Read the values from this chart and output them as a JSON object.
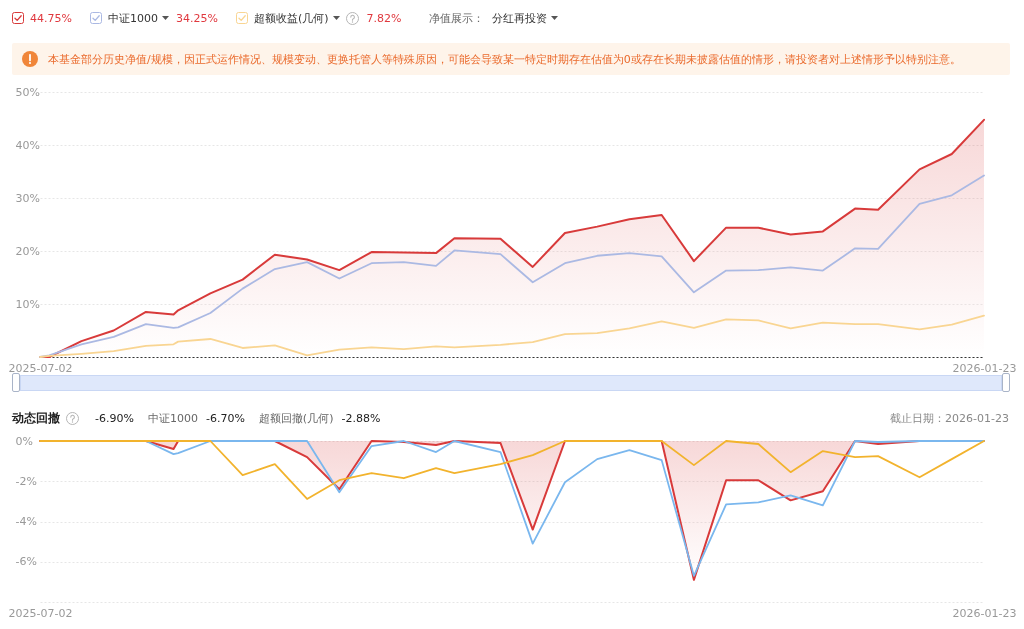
{
  "chart_data": [
    {
      "type": "line",
      "x": [
        "2025-07-02",
        "2025-07-04",
        "2025-07-11",
        "2025-07-18",
        "2025-07-25",
        "2025-07-31",
        "2025-08-01",
        "2025-08-08",
        "2025-08-15",
        "2025-08-22",
        "2025-08-29",
        "2025-09-05",
        "2025-09-12",
        "2025-09-19",
        "2025-09-26",
        "2025-09-30",
        "2025-10-10",
        "2025-10-17",
        "2025-10-24",
        "2025-10-31",
        "2025-11-07",
        "2025-11-14",
        "2025-11-21",
        "2025-11-28",
        "2025-12-05",
        "2025-12-12",
        "2025-12-19",
        "2025-12-26",
        "2025-12-31",
        "2026-01-09",
        "2026-01-16",
        "2026-01-23"
      ],
      "xlim": [
        "2025-07-02",
        "2026-01-23"
      ],
      "xticks": [
        "2025-07-02",
        "2026-01-23"
      ],
      "ylim": [
        0,
        50
      ],
      "yticks": [
        {
          "value": 0,
          "label": null
        },
        {
          "value": 10,
          "label": "10%"
        },
        {
          "value": 20,
          "label": "20%"
        },
        {
          "value": 30,
          "label": "30%"
        },
        {
          "value": 40,
          "label": "40%"
        },
        {
          "value": 50,
          "label": "50%"
        }
      ],
      "grid": "y",
      "legend": "top left",
      "series": [
        {
          "type": "area",
          "color": "#d83a3a",
          "values": [
            0,
            0,
            3.0,
            5.0,
            8.5,
            8.0,
            8.8,
            12.0,
            14.6,
            19.3,
            18.4,
            16.4,
            19.8,
            19.7,
            19.6,
            22.4,
            22.3,
            17.0,
            23.4,
            24.6,
            26.0,
            26.8,
            18.1,
            24.4,
            24.4,
            23.1,
            23.7,
            28.0,
            27.8,
            35.4,
            38.3,
            44.75
          ]
        },
        {
          "name": "中证1000",
          "color": "#abb9e3",
          "values": [
            0,
            0.3,
            2.4,
            3.8,
            6.2,
            5.5,
            5.6,
            8.3,
            12.9,
            16.6,
            17.9,
            14.8,
            17.7,
            17.9,
            17.2,
            20.1,
            19.4,
            14.1,
            17.7,
            19.1,
            19.6,
            19.0,
            12.2,
            16.3,
            16.4,
            16.9,
            16.3,
            20.5,
            20.4,
            28.9,
            30.5,
            34.25
          ]
        },
        {
          "name": "超额收益(几何)",
          "color": "#f9d592",
          "values": [
            0,
            0.2,
            0.6,
            1.1,
            2.1,
            2.4,
            2.9,
            3.4,
            1.7,
            2.2,
            0.3,
            1.4,
            1.8,
            1.5,
            2.0,
            1.8,
            2.3,
            2.8,
            4.3,
            4.5,
            5.4,
            6.7,
            5.5,
            7.1,
            6.9,
            5.4,
            6.5,
            6.2,
            6.2,
            5.2,
            6.1,
            7.82
          ]
        }
      ],
      "annotations": [
        "44.75%",
        "34.25%",
        "7.82%",
        "净值展示：",
        "分红再投资",
        "本基金部分历史净值/规模，因正式运作情况、规模变动、更换托管人等特殊原因，可能会导致某一特定时期存在估值为0或存在长期未披露估值的情形，请投资者对上述情形予以特别注意。"
      ]
    },
    {
      "type": "line",
      "title": "动态回撤",
      "x": [
        "2025-07-02",
        "2025-07-04",
        "2025-07-11",
        "2025-07-18",
        "2025-07-25",
        "2025-07-31",
        "2025-08-01",
        "2025-08-08",
        "2025-08-15",
        "2025-08-22",
        "2025-08-29",
        "2025-09-05",
        "2025-09-12",
        "2025-09-19",
        "2025-09-26",
        "2025-09-30",
        "2025-10-10",
        "2025-10-17",
        "2025-10-24",
        "2025-10-31",
        "2025-11-07",
        "2025-11-14",
        "2025-11-21",
        "2025-11-28",
        "2025-12-05",
        "2025-12-12",
        "2025-12-19",
        "2025-12-26",
        "2025-12-31",
        "2026-01-09",
        "2026-01-16",
        "2026-01-23"
      ],
      "xlim": [
        "2025-07-02",
        "2026-01-23"
      ],
      "xticks": [
        "2025-07-02",
        "2026-01-23"
      ],
      "ylim": [
        -8,
        0
      ],
      "yticks": [
        {
          "value": 0,
          "label": "0%"
        },
        {
          "value": -2,
          "label": "-2%"
        },
        {
          "value": -4,
          "label": "-4%"
        },
        {
          "value": -6,
          "label": "-6%"
        },
        {
          "value": -8,
          "label": null
        }
      ],
      "grid": "y",
      "series": [
        {
          "type": "area",
          "color": "#d83a3a",
          "values": [
            0,
            0,
            0,
            0,
            0,
            -0.4,
            0,
            0,
            0,
            0,
            -0.8,
            -2.4,
            0,
            -0.05,
            -0.2,
            0,
            -0.1,
            -4.4,
            0,
            0,
            0,
            0,
            -6.9,
            -1.95,
            -1.95,
            -2.95,
            -2.5,
            0,
            -0.15,
            0,
            0,
            0
          ]
        },
        {
          "color": "#7ab7ee",
          "values": [
            null,
            null,
            null,
            0,
            0,
            -0.65,
            -0.6,
            0,
            0,
            0,
            0,
            -2.55,
            -0.25,
            0,
            -0.55,
            0,
            -0.55,
            -5.1,
            -2.05,
            -0.9,
            -0.45,
            -0.95,
            -6.7,
            -3.15,
            -3.05,
            -2.7,
            -3.2,
            0,
            -0.05,
            0,
            0,
            0
          ]
        },
        {
          "color": "#f2b32d",
          "values": [
            0,
            0,
            0,
            0,
            0,
            0,
            0,
            0,
            -1.7,
            -1.15,
            -2.88,
            -1.95,
            -1.6,
            -1.85,
            -1.35,
            -1.6,
            -1.15,
            -0.7,
            0,
            0,
            0,
            0,
            -1.2,
            0,
            -0.15,
            -1.55,
            -0.5,
            -0.8,
            -0.75,
            -1.8,
            -0.9,
            0
          ]
        }
      ],
      "annotations": [
        "-6.90%",
        "中证1000",
        "-6.70%",
        "超额回撤(几何)",
        "-2.88%",
        "截止日期：2026-01-23"
      ]
    }
  ]
}
